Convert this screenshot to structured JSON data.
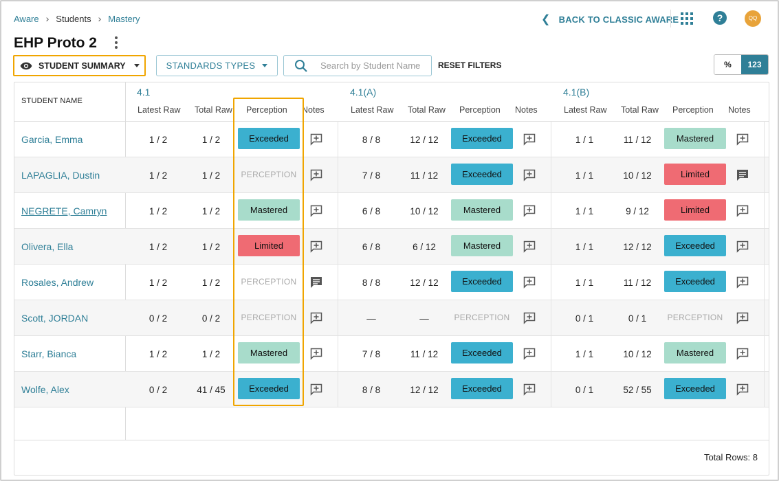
{
  "breadcrumb": [
    "Aware",
    "Students",
    "Mastery"
  ],
  "header": {
    "back_link": "BACK TO CLASSIC AWARE",
    "help": "?",
    "avatar_initials": "QQ",
    "page_title": "EHP Proto 2"
  },
  "filters": {
    "summary_label": "STUDENT SUMMARY",
    "standards_label": "STANDARDS TYPES",
    "search_placeholder": "Search by Student Name",
    "reset_label": "RESET FILTERS",
    "toggle_percent": "%",
    "toggle_count": "123",
    "toggle_active": "123"
  },
  "colors": {
    "accent": "#2f7f97",
    "highlight": "#f0a500",
    "exceeded": "#3bb0cf",
    "mastered": "#a8dccb",
    "limited": "#ef6b73"
  },
  "table": {
    "name_header": "STUDENT NAME",
    "sub_headers": [
      "Latest Raw",
      "Total Raw",
      "Perception",
      "Notes"
    ],
    "groups": [
      "4.1",
      "4.1(A)",
      "4.1(B)"
    ],
    "rows": [
      {
        "name": "Garcia, Emma",
        "underline": false,
        "cells": [
          {
            "latest": "1 / 2",
            "total": "1 / 2",
            "perception": "Exceeded",
            "note": "add-note"
          },
          {
            "latest": "8 / 8",
            "total": "12 / 12",
            "perception": "Exceeded",
            "note": "add-note"
          },
          {
            "latest": "1 / 1",
            "total": "11 / 12",
            "perception": "Mastered",
            "note": "add-note"
          }
        ]
      },
      {
        "name": "LAPAGLIA, Dustin",
        "underline": false,
        "cells": [
          {
            "latest": "1 / 2",
            "total": "1 / 2",
            "perception": "PERCEPTION",
            "note": "add-note"
          },
          {
            "latest": "7 / 8",
            "total": "11 / 12",
            "perception": "Exceeded",
            "note": "add-note"
          },
          {
            "latest": "1 / 1",
            "total": "10 / 12",
            "perception": "Limited",
            "note": "has-note"
          }
        ]
      },
      {
        "name": "NEGRETE, Camryn",
        "underline": true,
        "cells": [
          {
            "latest": "1 / 2",
            "total": "1 / 2",
            "perception": "Mastered",
            "note": "add-note"
          },
          {
            "latest": "6 / 8",
            "total": "10 / 12",
            "perception": "Mastered",
            "note": "add-note"
          },
          {
            "latest": "1 / 1",
            "total": "9 / 12",
            "perception": "Limited",
            "note": "add-note"
          }
        ]
      },
      {
        "name": "Olivera, Ella",
        "underline": false,
        "cells": [
          {
            "latest": "1 / 2",
            "total": "1 / 2",
            "perception": "Limited",
            "note": "add-note"
          },
          {
            "latest": "6 / 8",
            "total": "6 / 12",
            "perception": "Mastered",
            "note": "add-note"
          },
          {
            "latest": "1 / 1",
            "total": "12 / 12",
            "perception": "Exceeded",
            "note": "add-note"
          }
        ]
      },
      {
        "name": "Rosales, Andrew",
        "underline": false,
        "cells": [
          {
            "latest": "1 / 2",
            "total": "1 / 2",
            "perception": "PERCEPTION",
            "note": "has-note"
          },
          {
            "latest": "8 / 8",
            "total": "12 / 12",
            "perception": "Exceeded",
            "note": "add-note"
          },
          {
            "latest": "1 / 1",
            "total": "11 / 12",
            "perception": "Exceeded",
            "note": "add-note"
          }
        ]
      },
      {
        "name": "Scott, JORDAN",
        "underline": false,
        "cells": [
          {
            "latest": "0 / 2",
            "total": "0 / 2",
            "perception": "PERCEPTION",
            "note": "add-note"
          },
          {
            "latest": "—",
            "total": "—",
            "perception": "PERCEPTION",
            "note": "add-note"
          },
          {
            "latest": "0 / 1",
            "total": "0 / 1",
            "perception": "PERCEPTION",
            "note": "add-note"
          }
        ]
      },
      {
        "name": "Starr, Bianca",
        "underline": false,
        "cells": [
          {
            "latest": "1 / 2",
            "total": "1 / 2",
            "perception": "Mastered",
            "note": "add-note"
          },
          {
            "latest": "7 / 8",
            "total": "11 / 12",
            "perception": "Exceeded",
            "note": "add-note"
          },
          {
            "latest": "1 / 1",
            "total": "10 / 12",
            "perception": "Mastered",
            "note": "add-note"
          }
        ]
      },
      {
        "name": "Wolfe, Alex",
        "underline": false,
        "cells": [
          {
            "latest": "0 / 2",
            "total": "41 / 45",
            "perception": "Exceeded",
            "note": "add-note"
          },
          {
            "latest": "8 / 8",
            "total": "12 / 12",
            "perception": "Exceeded",
            "note": "add-note"
          },
          {
            "latest": "0 / 1",
            "total": "52 / 55",
            "perception": "Exceeded",
            "note": "add-note"
          }
        ]
      }
    ],
    "total_rows": "Total Rows: 8"
  }
}
